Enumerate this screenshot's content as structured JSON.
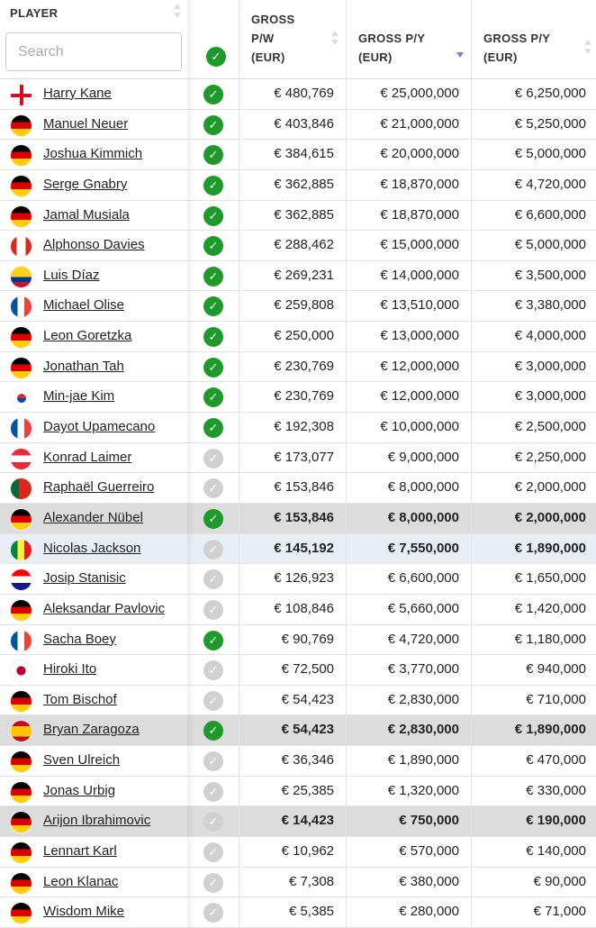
{
  "header": {
    "player": "PLAYER",
    "search_placeholder": "Search",
    "col_pw": [
      "GROSS",
      "P/W",
      "(EUR)"
    ],
    "col_py": [
      "GROSS P/Y",
      "(EUR)"
    ],
    "col_py2": [
      "GROSS P/Y",
      "(EUR)"
    ],
    "sorted_column": "GROSS P/Y (EUR)",
    "sort_direction": "descending"
  },
  "colors": {
    "check_on": "#1e9a2a",
    "check_off": "#d0d0d0",
    "highlight_gray": "#dcdcdc",
    "highlight_blue": "#e8eef5",
    "sort_active": "#7a7fd6"
  },
  "rows": [
    {
      "flag": "england",
      "name": "Harry Kane",
      "checked": true,
      "pw": "€ 480,769",
      "py": "€ 25,000,000",
      "py2": "€ 6,250,000"
    },
    {
      "flag": "germany",
      "name": "Manuel Neuer",
      "checked": true,
      "pw": "€ 403,846",
      "py": "€ 21,000,000",
      "py2": "€ 5,250,000"
    },
    {
      "flag": "germany",
      "name": "Joshua Kimmich",
      "checked": true,
      "pw": "€ 384,615",
      "py": "€ 20,000,000",
      "py2": "€ 5,000,000"
    },
    {
      "flag": "germany",
      "name": "Serge Gnabry",
      "checked": true,
      "pw": "€ 362,885",
      "py": "€ 18,870,000",
      "py2": "€ 4,720,000"
    },
    {
      "flag": "germany",
      "name": "Jamal Musiala",
      "checked": true,
      "pw": "€ 362,885",
      "py": "€ 18,870,000",
      "py2": "€ 6,600,000"
    },
    {
      "flag": "canada",
      "name": "Alphonso Davies",
      "checked": true,
      "pw": "€ 288,462",
      "py": "€ 15,000,000",
      "py2": "€ 5,000,000"
    },
    {
      "flag": "colombia",
      "name": "Luis Díaz",
      "checked": true,
      "pw": "€ 269,231",
      "py": "€ 14,000,000",
      "py2": "€ 3,500,000"
    },
    {
      "flag": "france",
      "name": "Michael Olise",
      "checked": true,
      "pw": "€ 259,808",
      "py": "€ 13,510,000",
      "py2": "€ 3,380,000"
    },
    {
      "flag": "germany",
      "name": "Leon Goretzka",
      "checked": true,
      "pw": "€ 250,000",
      "py": "€ 13,000,000",
      "py2": "€ 4,000,000"
    },
    {
      "flag": "germany",
      "name": "Jonathan Tah",
      "checked": true,
      "pw": "€ 230,769",
      "py": "€ 12,000,000",
      "py2": "€ 3,000,000"
    },
    {
      "flag": "korea",
      "name": "Min-jae Kim",
      "checked": true,
      "pw": "€ 230,769",
      "py": "€ 12,000,000",
      "py2": "€ 3,000,000"
    },
    {
      "flag": "france",
      "name": "Dayot Upamecano",
      "checked": true,
      "pw": "€ 192,308",
      "py": "€ 10,000,000",
      "py2": "€ 2,500,000"
    },
    {
      "flag": "austria",
      "name": "Konrad Laimer",
      "checked": false,
      "pw": "€ 173,077",
      "py": "€ 9,000,000",
      "py2": "€ 2,250,000"
    },
    {
      "flag": "portugal",
      "name": "Raphaël Guerreiro",
      "checked": false,
      "pw": "€ 153,846",
      "py": "€ 8,000,000",
      "py2": "€ 2,000,000"
    },
    {
      "flag": "germany",
      "name": "Alexander Nübel",
      "checked": true,
      "pw": "€ 153,846",
      "py": "€ 8,000,000",
      "py2": "€ 2,000,000",
      "highlight": "gray"
    },
    {
      "flag": "senegal",
      "name": "Nicolas Jackson",
      "checked": false,
      "pw": "€ 145,192",
      "py": "€ 7,550,000",
      "py2": "€ 1,890,000",
      "highlight": "blue"
    },
    {
      "flag": "croatia",
      "name": "Josip Stanisic",
      "checked": false,
      "pw": "€ 126,923",
      "py": "€ 6,600,000",
      "py2": "€ 1,650,000"
    },
    {
      "flag": "germany",
      "name": "Aleksandar Pavlovic",
      "checked": false,
      "pw": "€ 108,846",
      "py": "€ 5,660,000",
      "py2": "€ 1,420,000"
    },
    {
      "flag": "france",
      "name": "Sacha Boey",
      "checked": true,
      "pw": "€ 90,769",
      "py": "€ 4,720,000",
      "py2": "€ 1,180,000"
    },
    {
      "flag": "japan",
      "name": "Hiroki Ito",
      "checked": false,
      "pw": "€ 72,500",
      "py": "€ 3,770,000",
      "py2": "€ 940,000"
    },
    {
      "flag": "germany",
      "name": "Tom Bischof",
      "checked": false,
      "pw": "€ 54,423",
      "py": "€ 2,830,000",
      "py2": "€ 710,000"
    },
    {
      "flag": "spain",
      "name": "Bryan Zaragoza",
      "checked": true,
      "pw": "€ 54,423",
      "py": "€ 2,830,000",
      "py2": "€ 1,890,000",
      "highlight": "gray"
    },
    {
      "flag": "germany",
      "name": "Sven Ulreich",
      "checked": false,
      "pw": "€ 36,346",
      "py": "€ 1,890,000",
      "py2": "€ 470,000"
    },
    {
      "flag": "germany",
      "name": "Jonas Urbig",
      "checked": false,
      "pw": "€ 25,385",
      "py": "€ 1,320,000",
      "py2": "€ 330,000"
    },
    {
      "flag": "germany",
      "name": "Arijon Ibrahimovic",
      "checked": false,
      "pw": "€ 14,423",
      "py": "€ 750,000",
      "py2": "€ 190,000",
      "highlight": "gray"
    },
    {
      "flag": "germany",
      "name": "Lennart Karl",
      "checked": false,
      "pw": "€ 10,962",
      "py": "€ 570,000",
      "py2": "€ 140,000"
    },
    {
      "flag": "germany",
      "name": "Leon Klanac",
      "checked": false,
      "pw": "€ 7,308",
      "py": "€ 380,000",
      "py2": "€ 90,000"
    },
    {
      "flag": "germany",
      "name": "Wisdom Mike",
      "checked": false,
      "pw": "€ 5,385",
      "py": "€ 280,000",
      "py2": "€ 71,000"
    }
  ]
}
